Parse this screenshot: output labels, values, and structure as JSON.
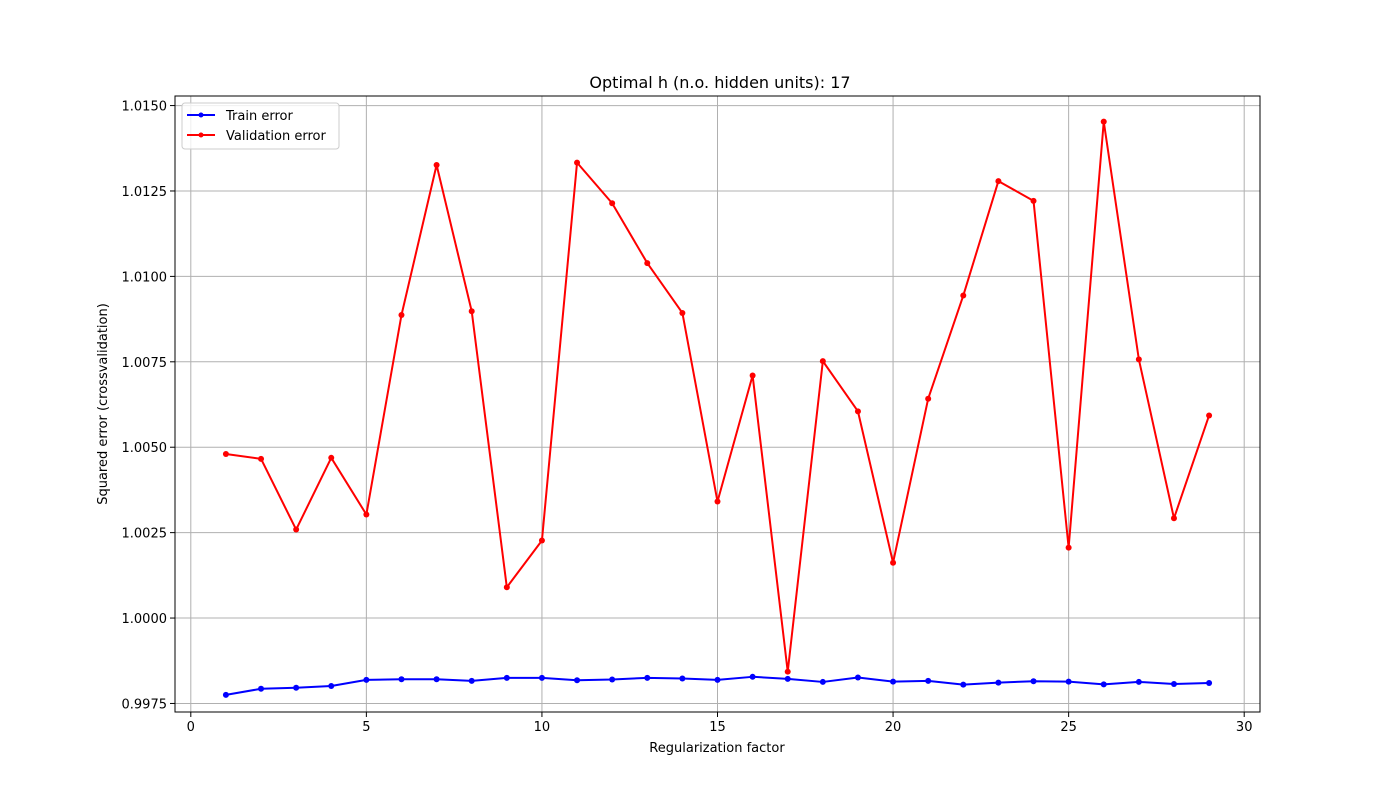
{
  "chart_data": {
    "type": "line",
    "title": "Optimal h (n.o. hidden units): 17",
    "xlabel": "Regularization factor",
    "ylabel": "Squared error (crossvalidation)",
    "xlim": [
      -0.45,
      30.45
    ],
    "ylim": [
      0.99725,
      1.01528
    ],
    "xticks": [
      0,
      5,
      10,
      15,
      20,
      25,
      30
    ],
    "xtick_labels": [
      "0",
      "5",
      "10",
      "15",
      "20",
      "25",
      "30"
    ],
    "yticks": [
      0.9975,
      1.0,
      1.0025,
      1.005,
      1.0075,
      1.01,
      1.0125,
      1.015
    ],
    "ytick_labels": [
      "0.9975",
      "1.0000",
      "1.0025",
      "1.0050",
      "1.0075",
      "1.0100",
      "1.0125",
      "1.0150"
    ],
    "grid": true,
    "legend_position": "top-left",
    "x": [
      1,
      2,
      3,
      4,
      5,
      6,
      7,
      8,
      9,
      10,
      11,
      12,
      13,
      14,
      15,
      16,
      17,
      18,
      19,
      20,
      21,
      22,
      23,
      24,
      25,
      26,
      27,
      28,
      29
    ],
    "series": [
      {
        "name": "Train error",
        "color": "#0000ff",
        "values": [
          0.99775,
          0.99793,
          0.99796,
          0.99801,
          0.99819,
          0.99821,
          0.99821,
          0.99816,
          0.99825,
          0.99825,
          0.99818,
          0.9982,
          0.99825,
          0.99823,
          0.99819,
          0.99828,
          0.99822,
          0.99813,
          0.99826,
          0.99814,
          0.99816,
          0.99805,
          0.99811,
          0.99815,
          0.99814,
          0.99806,
          0.99813,
          0.99807,
          0.9981
        ]
      },
      {
        "name": "Validation error",
        "color": "#ff0000",
        "values": [
          1.0048,
          1.00466,
          1.00259,
          1.00469,
          1.00303,
          1.00887,
          1.01326,
          1.00898,
          1.0009,
          1.00227,
          1.01333,
          1.01214,
          1.01039,
          1.00893,
          1.00341,
          1.0071,
          0.99843,
          1.00752,
          1.00605,
          1.00162,
          1.00642,
          1.00944,
          1.01279,
          1.01221,
          1.00206,
          1.01453,
          1.00757,
          1.00292,
          1.00593
        ]
      }
    ]
  }
}
